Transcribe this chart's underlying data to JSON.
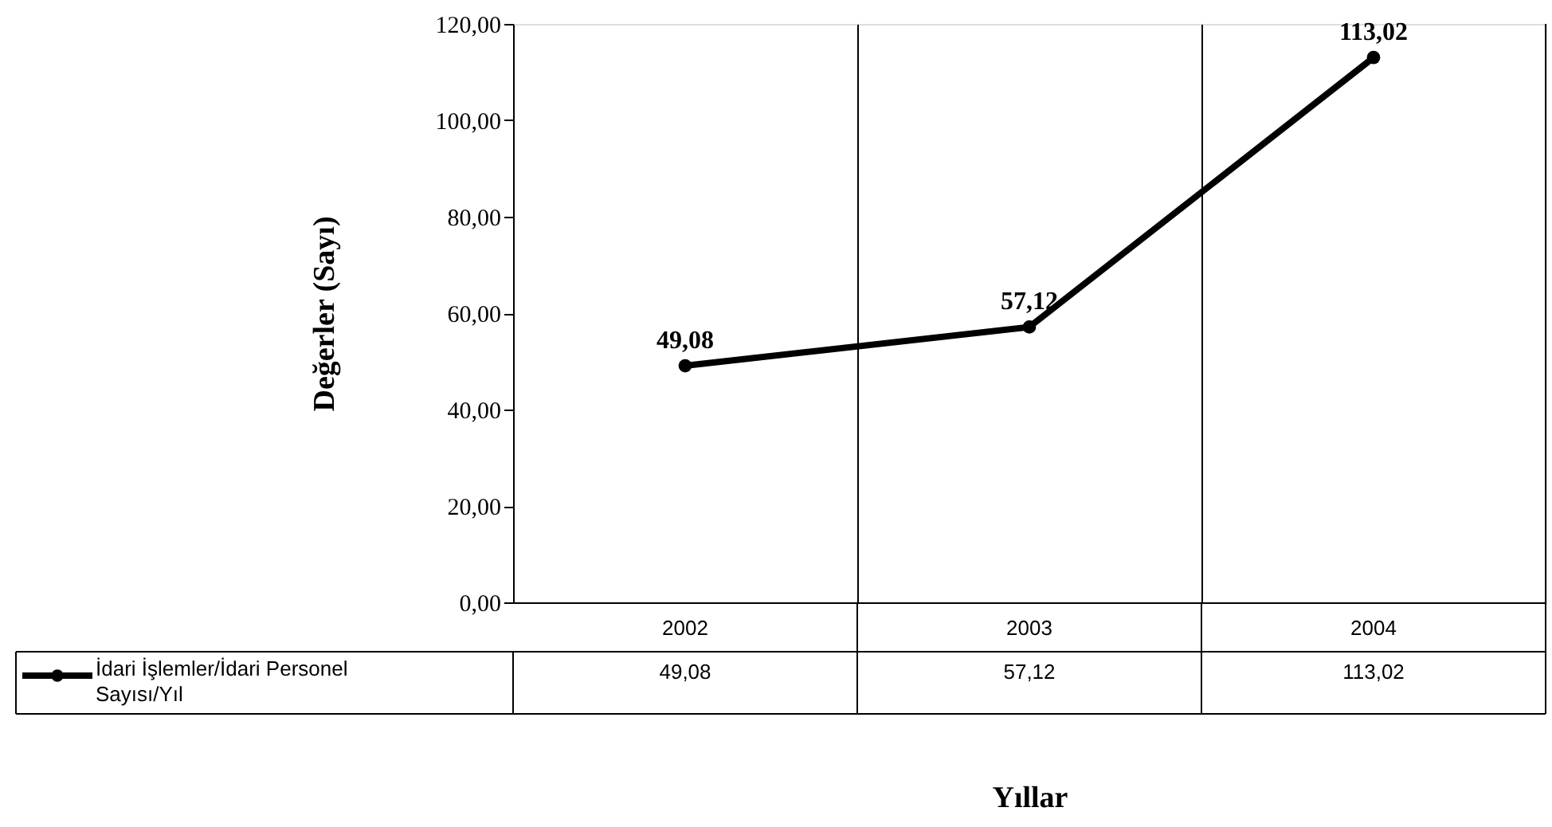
{
  "chart_data": {
    "type": "line",
    "xlabel": "Yıllar",
    "ylabel": "Değerler (Sayı)",
    "categories": [
      "2002",
      "2003",
      "2004"
    ],
    "series": [
      {
        "name": "İdari İşlemler/İdari Personel Sayısı/Yıl",
        "color": "#000000",
        "values": [
          49.08,
          57.12,
          113.02
        ],
        "value_labels": [
          "49,08",
          "57,12",
          "113,02"
        ]
      }
    ],
    "ylim": [
      0,
      120
    ],
    "yticks": [
      {
        "value": 0,
        "label": "0,00"
      },
      {
        "value": 20,
        "label": "20,00"
      },
      {
        "value": 40,
        "label": "40,00"
      },
      {
        "value": 60,
        "label": "60,00"
      },
      {
        "value": 80,
        "label": "80,00"
      },
      {
        "value": 100,
        "label": "100,00"
      },
      {
        "value": 120,
        "label": "120,00"
      }
    ],
    "grid": "x",
    "legend": "bottom",
    "marker": "circle",
    "line_style": "solid"
  }
}
